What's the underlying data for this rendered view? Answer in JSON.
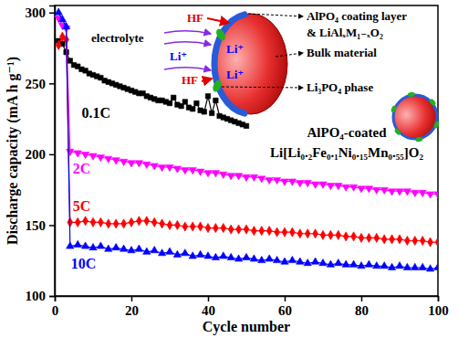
{
  "chart_data": {
    "type": "line",
    "xlabel": "Cycle number",
    "ylabel": "Discharge capacity (mA h g⁻¹)",
    "xlim": [
      0,
      100
    ],
    "ylim": [
      100,
      305
    ],
    "xticks": [
      0,
      20,
      40,
      60,
      80,
      100
    ],
    "yticks": [
      100,
      150,
      200,
      250,
      300
    ],
    "series": [
      {
        "name": "0.1C",
        "color": "#000000",
        "marker": "square",
        "line_style": "solid",
        "x": [
          1,
          2,
          3,
          4,
          5,
          6,
          7,
          8,
          9,
          10,
          11,
          12,
          13,
          14,
          15,
          16,
          17,
          18,
          19,
          20,
          21,
          22,
          23,
          24,
          25,
          26,
          27,
          28,
          29,
          30,
          31,
          32,
          33,
          34,
          35,
          36,
          37,
          38,
          39,
          40,
          41,
          42,
          43,
          44,
          45,
          46,
          47,
          48,
          49,
          50
        ],
        "values": [
          280,
          278,
          272,
          266,
          263,
          262,
          260,
          259,
          257,
          256,
          255,
          254,
          252,
          251,
          250,
          249,
          248,
          247,
          246,
          245,
          244,
          243,
          243,
          241,
          240,
          239,
          238,
          238,
          237,
          236,
          240,
          235,
          234,
          237,
          233,
          232,
          236,
          231,
          230,
          241,
          229,
          238,
          227,
          226,
          225,
          224,
          223,
          222,
          221,
          220
        ]
      },
      {
        "name": "2C",
        "color": "#ff00ff",
        "marker": "triangle-down",
        "line_style": "solid",
        "x": [
          1,
          2,
          3,
          4,
          6,
          8,
          10,
          12,
          14,
          16,
          18,
          20,
          22,
          24,
          26,
          28,
          30,
          32,
          34,
          36,
          38,
          40,
          42,
          44,
          46,
          48,
          50,
          52,
          54,
          56,
          58,
          60,
          62,
          64,
          66,
          68,
          70,
          72,
          74,
          76,
          78,
          80,
          82,
          84,
          86,
          88,
          90,
          92,
          94,
          96,
          98,
          100
        ],
        "values": [
          296,
          291,
          289,
          202,
          201,
          200,
          199,
          198,
          197,
          196,
          195,
          194,
          194,
          193,
          192,
          191,
          191,
          190,
          189,
          189,
          188,
          187,
          187,
          186,
          185,
          185,
          184,
          184,
          183,
          182,
          182,
          181,
          181,
          180,
          180,
          179,
          179,
          178,
          178,
          177,
          177,
          176,
          176,
          175,
          175,
          174,
          174,
          174,
          173,
          173,
          172,
          172
        ]
      },
      {
        "name": "5C",
        "color": "#ff0000",
        "marker": "diamond",
        "line_style": "solid",
        "x": [
          1,
          2,
          3,
          4,
          6,
          8,
          10,
          12,
          14,
          16,
          18,
          20,
          22,
          24,
          26,
          28,
          30,
          32,
          34,
          36,
          38,
          40,
          42,
          44,
          46,
          48,
          50,
          52,
          54,
          56,
          58,
          60,
          62,
          64,
          66,
          68,
          70,
          72,
          74,
          76,
          78,
          80,
          82,
          84,
          86,
          88,
          90,
          92,
          94,
          96,
          98,
          100
        ],
        "values": [
          277,
          283,
          281,
          152,
          152,
          153,
          152,
          152,
          151,
          151,
          151,
          152,
          153,
          153,
          152,
          151,
          150,
          150,
          149,
          149,
          149,
          148,
          148,
          148,
          147,
          147,
          147,
          146,
          146,
          146,
          145,
          145,
          145,
          144,
          144,
          144,
          143,
          143,
          143,
          142,
          142,
          141,
          141,
          141,
          140,
          140,
          140,
          139,
          139,
          139,
          138,
          138
        ]
      },
      {
        "name": "10C",
        "color": "#0000ff",
        "marker": "triangle",
        "line_style": "solid",
        "x": [
          1,
          2,
          3,
          4,
          6,
          8,
          10,
          12,
          14,
          16,
          18,
          20,
          22,
          24,
          26,
          28,
          30,
          32,
          34,
          36,
          38,
          40,
          42,
          44,
          46,
          48,
          50,
          52,
          54,
          56,
          58,
          60,
          62,
          64,
          66,
          68,
          70,
          72,
          74,
          76,
          78,
          80,
          82,
          84,
          86,
          88,
          90,
          92,
          94,
          96,
          98,
          100
        ],
        "values": [
          300,
          295,
          290,
          135,
          136,
          135,
          134,
          135,
          133,
          134,
          133,
          132,
          133,
          131,
          132,
          130,
          131,
          129,
          130,
          128,
          129,
          128,
          127,
          128,
          127,
          126,
          127,
          126,
          125,
          126,
          125,
          124,
          125,
          124,
          123,
          124,
          123,
          122,
          123,
          122,
          122,
          121,
          122,
          121,
          121,
          120,
          121,
          120,
          120,
          120,
          119,
          120
        ]
      }
    ],
    "annotations": [
      "electrolyte",
      "HF",
      "HF",
      "Li⁺",
      "Li⁺",
      "Li⁺",
      "AlPO₄ coating layer",
      "& LiAlₓM₁₋ₓO₂",
      "Bulk material",
      "Li₃PO₄ phase",
      "AlPO₄-coated",
      "Li[Li₀.₂Fe₀.₁Ni₀.₁₅Mn₀.₅₅]O₂"
    ]
  }
}
